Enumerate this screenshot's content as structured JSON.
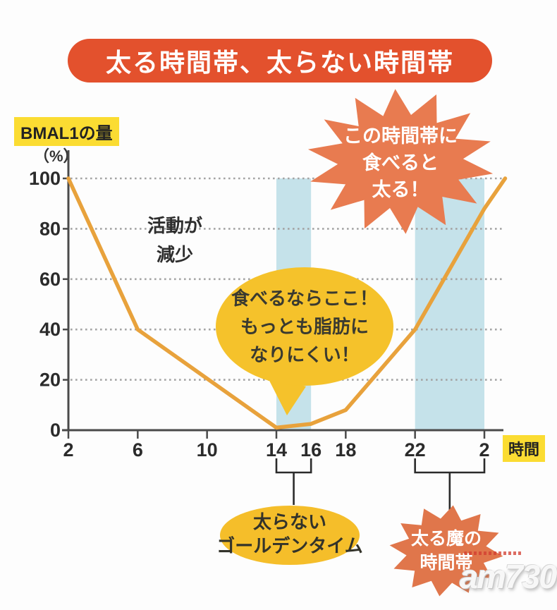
{
  "title": {
    "text": "太る時間帯、太らない時間帯"
  },
  "chart_labels": {
    "y_axis_title": "BMAL1の量",
    "y_axis_unit": "（%）",
    "x_axis_title": "時間"
  },
  "chart_data": {
    "type": "line",
    "title": "太る時間帯、太らない時間帯",
    "xlabel": "時間",
    "ylabel": "BMAL1の量 (%)",
    "ylim": [
      0,
      100
    ],
    "xlim_hours": [
      2,
      27.2
    ],
    "grid": {
      "style": "dotted-horizontal",
      "color": "#a5a5a5"
    },
    "y_ticks": [
      0,
      20,
      40,
      60,
      80,
      100
    ],
    "x_ticks": [
      {
        "hour": 2,
        "label": "2",
        "tick": true
      },
      {
        "hour": 6,
        "label": "6",
        "tick": true
      },
      {
        "hour": 10,
        "label": "10",
        "tick": true
      },
      {
        "hour": 14,
        "label": "14",
        "tick": true
      },
      {
        "hour": 16,
        "label": "16",
        "tick": false
      },
      {
        "hour": 18,
        "label": "18",
        "tick": true
      },
      {
        "hour": 22,
        "label": "22",
        "tick": true
      },
      {
        "hour": 26,
        "label": "2",
        "tick": true
      }
    ],
    "series": [
      {
        "name": "BMAL1の量",
        "color": "#E8A23C",
        "points_hour_pct": [
          [
            2,
            100
          ],
          [
            6,
            40
          ],
          [
            14,
            1
          ],
          [
            16,
            2.5
          ],
          [
            18,
            8
          ],
          [
            22,
            40
          ],
          [
            26,
            88
          ],
          [
            27.2,
            100
          ]
        ]
      }
    ],
    "highlight_bands": [
      {
        "from_hour": 14,
        "to_hour": 16,
        "color": "#C5E2EA",
        "meaning": "太らないゴールデンタイム"
      },
      {
        "from_hour": 22,
        "to_hour": 26,
        "color": "#C5E2EA",
        "meaning": "太る魔の時間帯"
      }
    ]
  },
  "annotations": {
    "activity": {
      "lines": [
        "活動が",
        "減少"
      ]
    },
    "starburst_top": {
      "lines": [
        "この時間帯に",
        "食べると",
        "太る！"
      ]
    },
    "bubble": {
      "lines": [
        "食べるならここ！",
        "もっとも脂肪に",
        "なりにくい！"
      ]
    },
    "golden": {
      "lines": [
        "太らない",
        "ゴールデンタイム"
      ]
    },
    "devil": {
      "lines": [
        "太る魔の",
        "時間帯"
      ]
    }
  },
  "watermark": {
    "text": "am730"
  },
  "colors": {
    "banner_red": "#E3512D",
    "starburst_orange": "#E87B50",
    "starburst_dark_orange": "#E0764B",
    "bubble_yellow": "#F5C22B",
    "golden_yellow": "#F5BE2A",
    "highlight_yellow": "#FBDC32",
    "line_orange": "#E8A23C",
    "band_blue": "#C5E2EA",
    "axis_dark": "#4A4A4A",
    "bracket_black": "#2b2b2b"
  }
}
